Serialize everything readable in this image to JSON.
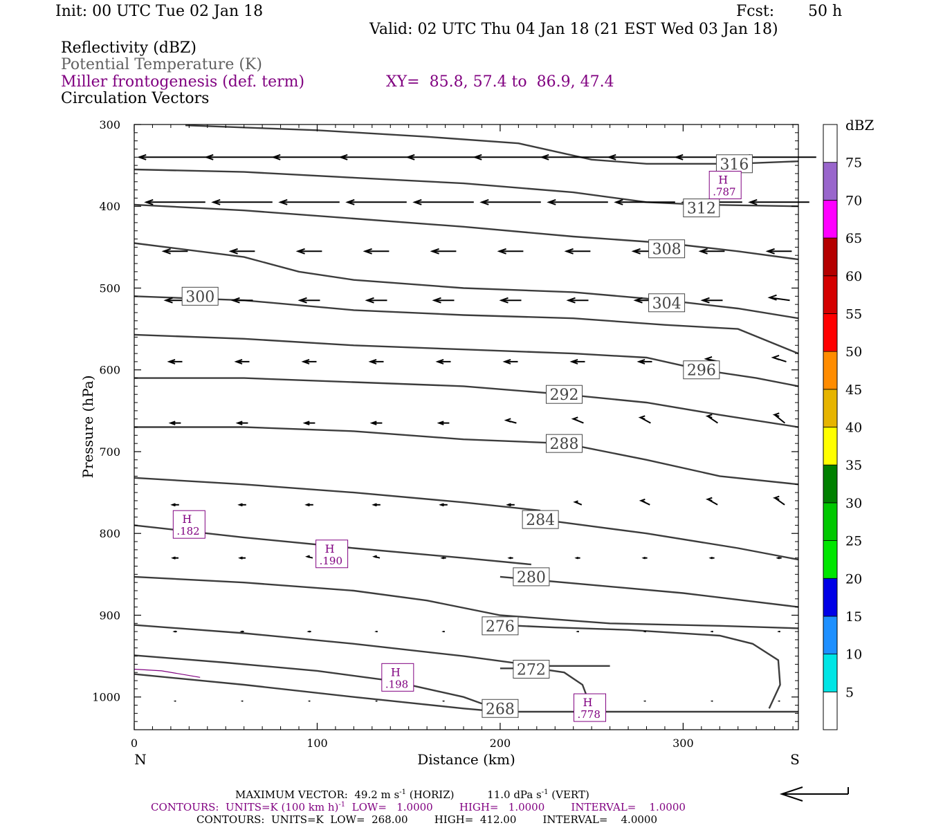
{
  "header": {
    "init": "Init: 00 UTC Tue 02 Jan 18",
    "fcst_label": "Fcst:",
    "fcst_value": "50 h",
    "valid": "Valid: 02 UTC Thu 04 Jan 18 (21 EST Wed 03 Jan 18)",
    "field1": "Reflectivity (dBZ)",
    "field2": "Potential Temperature (K)",
    "field3": "Miller frontogenesis (def. term)",
    "xy": "XY=  85.8, 57.4 to  86.9, 47.4",
    "field4": "Circulation Vectors"
  },
  "colors": {
    "theta": "#3c3c3c",
    "fronto": "#800080",
    "axis": "#000000",
    "colorbar": [
      "#00e5e5",
      "#1e90ff",
      "#0000e6",
      "#00e600",
      "#00c800",
      "#008000",
      "#ffff00",
      "#e6b400",
      "#ff8c00",
      "#ff0000",
      "#d40000",
      "#b40000",
      "#ff00ff",
      "#9966cc",
      "#ffffff"
    ]
  },
  "chart_data": {
    "type": "cross-section",
    "xlabel": "Distance (km)",
    "ylabel": "Pressure (hPa)",
    "xlim": [
      0,
      363
    ],
    "ylim": [
      1040,
      300
    ],
    "x_ticks": [
      0,
      100,
      200,
      300
    ],
    "y_ticks": [
      300,
      400,
      500,
      600,
      700,
      800,
      900,
      1000
    ],
    "left_label": "N",
    "right_label": "S",
    "theta_contours": [
      {
        "value": 268,
        "label": "268",
        "label_at": [
          200,
          1014
        ],
        "points": [
          [
            0,
            972
          ],
          [
            60,
            985
          ],
          [
            120,
            1000
          ],
          [
            180,
            1014
          ],
          [
            200,
            1018
          ],
          [
            363,
            1018
          ]
        ]
      },
      {
        "value": 272,
        "label": "272",
        "label_at": [
          217,
          966
        ],
        "points": [
          [
            0,
            949
          ],
          [
            50,
            958
          ],
          [
            100,
            968
          ],
          [
            140,
            980
          ],
          [
            180,
            1000
          ],
          [
            190,
            1008
          ]
        ]
      },
      {
        "value": 272,
        "label": "",
        "points": [
          [
            200,
            965
          ],
          [
            220,
            965
          ],
          [
            235,
            970
          ],
          [
            245,
            985
          ],
          [
            248,
            1003
          ],
          [
            250,
            1015
          ]
        ]
      },
      {
        "value": 276,
        "label": "276",
        "label_at": [
          200,
          913
        ],
        "points": [
          [
            0,
            912
          ],
          [
            60,
            922
          ],
          [
            120,
            935
          ],
          [
            180,
            950
          ],
          [
            220,
            962
          ],
          [
            260,
            962
          ]
        ]
      },
      {
        "value": 276,
        "label": "",
        "points": [
          [
            200,
            912
          ],
          [
            230,
            915
          ],
          [
            270,
            918
          ],
          [
            320,
            925
          ],
          [
            338,
            935
          ],
          [
            352,
            955
          ],
          [
            353,
            985
          ],
          [
            347,
            1014
          ]
        ]
      },
      {
        "value": 280,
        "label": "280",
        "label_at": [
          217,
          853
        ],
        "points": [
          [
            0,
            853
          ],
          [
            60,
            860
          ],
          [
            120,
            870
          ],
          [
            160,
            882
          ],
          [
            200,
            900
          ],
          [
            260,
            910
          ],
          [
            320,
            913
          ],
          [
            363,
            916
          ]
        ]
      },
      {
        "value": 280,
        "label": "",
        "points": [
          [
            200,
            853
          ],
          [
            250,
            863
          ],
          [
            300,
            873
          ],
          [
            363,
            890
          ]
        ]
      },
      {
        "value": 284,
        "label": "284",
        "label_at": [
          222,
          783
        ],
        "points": [
          [
            0,
            790
          ],
          [
            60,
            805
          ],
          [
            120,
            818
          ],
          [
            180,
            830
          ],
          [
            217,
            838
          ]
        ]
      },
      {
        "value": 284,
        "label": "",
        "points": [
          [
            222,
            783
          ],
          [
            280,
            800
          ],
          [
            330,
            818
          ],
          [
            363,
            832
          ]
        ]
      },
      {
        "value": 288,
        "label": "288",
        "label_at": [
          235,
          690
        ],
        "points": [
          [
            0,
            732
          ],
          [
            60,
            740
          ],
          [
            120,
            750
          ],
          [
            180,
            762
          ],
          [
            222,
            772
          ]
        ]
      },
      {
        "value": 288,
        "label": "",
        "points": [
          [
            235,
            690
          ],
          [
            280,
            710
          ],
          [
            320,
            730
          ],
          [
            363,
            740
          ]
        ]
      },
      {
        "value": 288,
        "label": "",
        "points": [
          [
            0,
            670
          ],
          [
            60,
            670
          ],
          [
            120,
            675
          ],
          [
            180,
            685
          ],
          [
            235,
            690
          ]
        ]
      },
      {
        "value": 292,
        "label": "292",
        "label_at": [
          235,
          630
        ],
        "points": [
          [
            0,
            610
          ],
          [
            60,
            610
          ],
          [
            120,
            615
          ],
          [
            180,
            620
          ],
          [
            235,
            630
          ],
          [
            280,
            640
          ],
          [
            320,
            655
          ],
          [
            363,
            670
          ]
        ]
      },
      {
        "value": 296,
        "label": "296",
        "label_at": [
          310,
          600
        ],
        "points": [
          [
            0,
            557
          ],
          [
            60,
            562
          ],
          [
            120,
            570
          ],
          [
            180,
            575
          ],
          [
            240,
            580
          ],
          [
            280,
            585
          ],
          [
            310,
            600
          ],
          [
            340,
            610
          ],
          [
            363,
            620
          ]
        ]
      },
      {
        "value": 300,
        "label": "300",
        "label_at": [
          36,
          510
        ],
        "points": [
          [
            0,
            510
          ],
          [
            60,
            515
          ],
          [
            120,
            527
          ],
          [
            180,
            533
          ],
          [
            240,
            537
          ],
          [
            290,
            545
          ],
          [
            330,
            550
          ],
          [
            363,
            580
          ]
        ]
      },
      {
        "value": 304,
        "label": "304",
        "label_at": [
          291,
          518
        ],
        "points": [
          [
            0,
            445
          ],
          [
            60,
            462
          ],
          [
            90,
            480
          ],
          [
            120,
            490
          ],
          [
            180,
            500
          ],
          [
            240,
            505
          ],
          [
            291,
            515
          ],
          [
            330,
            525
          ],
          [
            363,
            537
          ]
        ]
      },
      {
        "value": 308,
        "label": "308",
        "label_at": [
          291,
          452
        ],
        "points": [
          [
            0,
            398
          ],
          [
            60,
            405
          ],
          [
            120,
            415
          ],
          [
            180,
            425
          ],
          [
            240,
            437
          ],
          [
            291,
            445
          ],
          [
            330,
            455
          ],
          [
            363,
            465
          ]
        ]
      },
      {
        "value": 312,
        "label": "312",
        "label_at": [
          310,
          402
        ],
        "points": [
          [
            0,
            355
          ],
          [
            60,
            358
          ],
          [
            120,
            365
          ],
          [
            180,
            372
          ],
          [
            240,
            383
          ],
          [
            280,
            395
          ],
          [
            310,
            398
          ],
          [
            363,
            400
          ]
        ]
      },
      {
        "value": 316,
        "label": "316",
        "label_at": [
          328,
          348
        ],
        "points": [
          [
            28,
            301
          ],
          [
            100,
            307
          ],
          [
            160,
            315
          ],
          [
            210,
            323
          ],
          [
            250,
            343
          ],
          [
            280,
            348
          ],
          [
            328,
            348
          ],
          [
            363,
            345
          ]
        ]
      }
    ],
    "fronto_maxima": [
      {
        "label": "H",
        "value": ".787",
        "x": 323,
        "p": 374
      },
      {
        "label": "H",
        "value": ".182",
        "x": 30,
        "p": 789
      },
      {
        "label": "H",
        "value": ".190",
        "x": 108,
        "p": 825
      },
      {
        "label": "H",
        "value": ".198",
        "x": 144,
        "p": 976
      },
      {
        "label": "H",
        "value": ".778",
        "x": 249,
        "p": 1013
      }
    ],
    "vectors": [
      {
        "p": 340,
        "u": [
          -1,
          -1,
          -1,
          -1,
          -1,
          -1,
          -1,
          -1,
          -1,
          -1
        ],
        "w": [
          0,
          0,
          0,
          0,
          0,
          0,
          0,
          0,
          0,
          0
        ],
        "scale": 1.0
      },
      {
        "p": 395,
        "u": [
          -0.9,
          -0.9,
          -0.9,
          -0.9,
          -0.9,
          -0.9,
          -0.9,
          -0.9,
          -0.9,
          -0.9
        ],
        "w": [
          0,
          0,
          0,
          0,
          0,
          0,
          0,
          0,
          0,
          0
        ],
        "scale": 0.9
      },
      {
        "p": 455,
        "u": [
          -0.6,
          -0.6,
          -0.6,
          -0.6,
          -0.6,
          -0.6,
          -0.6,
          -0.6,
          -0.6,
          -0.6
        ],
        "w": [
          0,
          0,
          0,
          0,
          0,
          0,
          0,
          0,
          0,
          0
        ],
        "scale": 0.55
      },
      {
        "p": 515,
        "u": [
          -0.55,
          -0.55,
          -0.55,
          -0.55,
          -0.55,
          -0.55,
          -0.55,
          -0.55,
          -0.55,
          -0.55
        ],
        "w": [
          0,
          0,
          0,
          0,
          0,
          0,
          0,
          0,
          0,
          0.1
        ],
        "scale": 0.5
      },
      {
        "p": 590,
        "u": [
          -0.45,
          -0.45,
          -0.45,
          -0.45,
          -0.45,
          -0.45,
          -0.45,
          -0.45,
          -0.45,
          -0.45
        ],
        "w": [
          0,
          0,
          0,
          0,
          0,
          0,
          0,
          0,
          0.1,
          0.15
        ],
        "scale": 0.4
      },
      {
        "p": 665,
        "u": [
          -0.4,
          -0.4,
          -0.4,
          -0.4,
          -0.4,
          -0.4,
          -0.4,
          -0.4,
          -0.4,
          -0.4
        ],
        "w": [
          0,
          0,
          0,
          0,
          0,
          0.1,
          0.15,
          0.2,
          0.25,
          0.3
        ],
        "scale": 0.35
      },
      {
        "p": 765,
        "u": [
          -0.3,
          -0.3,
          -0.3,
          -0.3,
          -0.3,
          -0.3,
          -0.3,
          -0.4,
          -0.45,
          -0.45
        ],
        "w": [
          0,
          0,
          0,
          0,
          0,
          0,
          0.1,
          0.15,
          0.2,
          0.25
        ],
        "scale": 0.3
      },
      {
        "p": 830,
        "u": [
          -0.3,
          -0.3,
          -0.3,
          -0.3,
          -0.2,
          -0.2,
          -0.2,
          -0.2,
          -0.2,
          -0.2
        ],
        "w": [
          0,
          0,
          0.05,
          0.05,
          0,
          0,
          0,
          0,
          0,
          0
        ],
        "scale": 0.25
      },
      {
        "p": 920,
        "u": [
          -0.2,
          -0.2,
          -0.2,
          -0.1,
          -0.1,
          -0.1,
          -0.1,
          -0.1,
          -0.1,
          -0.1
        ],
        "w": [
          0,
          0,
          0,
          0,
          0,
          0,
          0,
          0,
          0,
          0
        ],
        "scale": 0.15
      },
      {
        "p": 1005,
        "u": [
          -0.05,
          -0.05,
          -0.05,
          -0.05,
          -0.05,
          -0.05,
          -0.05,
          -0.05,
          -0.05,
          -0.05
        ],
        "w": [
          0,
          0,
          0,
          0,
          0,
          0,
          0,
          0,
          0,
          0
        ],
        "scale": 0.1
      }
    ],
    "colorbar": {
      "title": "dBZ",
      "labels": [
        "5",
        "10",
        "15",
        "20",
        "25",
        "30",
        "35",
        "40",
        "45",
        "50",
        "55",
        "60",
        "65",
        "70",
        "75"
      ]
    }
  },
  "footer": {
    "max_vector_a": "MAXIMUM VECTOR:  49.2 m s",
    "max_vector_b": "-1",
    "max_vector_c": " (HORIZ)          11.0 dPa s",
    "max_vector_d": "-1",
    "max_vector_e": " (VERT)",
    "contours1_a": "CONTOURS:  UNITS=K (100 km h)",
    "contours1_b": "-1",
    "contours1_c": "  LOW=   1.0000        HIGH=   1.0000        INTERVAL=    1.0000",
    "contours2": "CONTOURS:  UNITS=K  LOW=  268.00        HIGH=  412.00        INTERVAL=    4.0000"
  }
}
